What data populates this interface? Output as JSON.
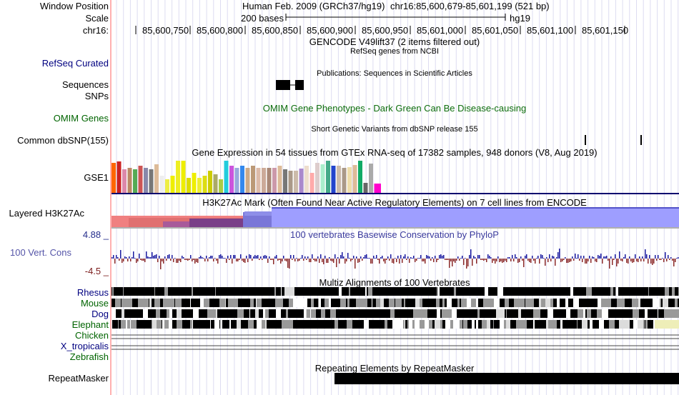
{
  "header": {
    "window_position_label": "Window Position",
    "scale_label": "Scale",
    "chrom_label": "chr16:",
    "assembly": "Human Feb. 2009 (GRCh37/hg19)",
    "region": "chr16:85,600,679-85,601,199 (521 bp)",
    "scale_text": "200 bases",
    "scale_db": "hg19",
    "ruler_ticks": [
      "85,600,750",
      "85,600,800",
      "85,600,850",
      "85,600,900",
      "85,600,950",
      "85,601,000",
      "85,601,050",
      "85,601,100",
      "85,601,150"
    ]
  },
  "tracks": {
    "gencode_title": "GENCODE V49lift37 (2 items filtered out)",
    "refseq_title": "RefSeq genes from NCBI",
    "refseq_label": "RefSeq Curated",
    "pubs_title": "Publications: Sequences in Scientific Articles",
    "sequences_label": "Sequences",
    "snps_label": "SNPs",
    "omim_title": "OMIM Gene Phenotypes - Dark Green Can Be Disease-causing",
    "omim_label": "OMIM Genes",
    "dbsnp_title": "Short Genetic Variants from dbSNP release 155",
    "dbsnp_label": "Common dbSNP(155)",
    "gtex_title": "Gene Expression in 54 tissues from GTEx RNA-seq of 17382 samples, 948 donors (V8, Aug 2019)",
    "gtex_label": "GSE1",
    "h3k27ac_title": "H3K27Ac Mark (Often Found Near Active Regulatory Elements) on 7 cell lines from ENCODE",
    "h3k27ac_label": "Layered H3K27Ac",
    "cons_title": "100 vertebrates Basewise Conservation by PhyloP",
    "cons_label": "100 Vert. Cons",
    "cons_max": "4.88 _",
    "cons_min": "-4.5 _",
    "multiz_title": "Multiz Alignments of 100 Vertebrates",
    "species": [
      "Rhesus",
      "Mouse",
      "Dog",
      "Elephant",
      "Chicken",
      "X_tropicalis",
      "Zebrafish"
    ],
    "repeat_title": "Repeating Elements by RepeatMasker",
    "repeat_label": "RepeatMasker"
  },
  "colors": {
    "navy_label": "#000080",
    "green_label": "#006400",
    "omim_title": "#0d6d0d",
    "cons_title": "#3c3c9e",
    "cons_max": "#262e8c",
    "cons_min": "#7a1a1a",
    "cons_label": "#5555a8",
    "divider": "#0e006e",
    "grid": "#dddcf1",
    "side_bar": "#ffb0b0"
  },
  "gtex_bar_colors": [
    "#ff6600",
    "#cc2222",
    "#dd88aa",
    "#bb8866",
    "#55aa55",
    "#cc5555",
    "#8888aa",
    "#777777",
    "#ddbb99",
    "#eeeeee",
    "#eeee44",
    "#eeee00",
    "#eeee22",
    "#eeee00",
    "#dddd00",
    "#eeee00",
    "#eeee33",
    "#dddd11",
    "#cccc00",
    "#aaaa66",
    "#aacc44",
    "#22ccdd",
    "#cc55dd",
    "#99aadd",
    "#3388ee",
    "#ccaa88",
    "#bb9977",
    "#ddbbaa",
    "#ccaa99",
    "#aa8877",
    "#cc99aa",
    "#ddbb99",
    "#777777",
    "#aa9988",
    "#ccbbaa",
    "#aa88cc",
    "#eeddcc",
    "#ffaaaa",
    "#ddcccc",
    "#aaeecc",
    "#44aa88",
    "#2244cc",
    "#ccbbaa",
    "#aa9988",
    "#eeddaa",
    "#ddbb99",
    "#11aa66",
    "#666666",
    "#aaaaaa",
    "#ff00cc",
    "#55dd55"
  ],
  "gtex_bar_values": [
    0.9,
    0.93,
    0.7,
    0.75,
    0.7,
    0.8,
    0.75,
    0.7,
    0.85,
    0.5,
    0.4,
    0.5,
    0.95,
    0.95,
    0.45,
    0.6,
    0.45,
    0.5,
    0.65,
    0.55,
    0.4,
    0.95,
    0.8,
    0.75,
    0.8,
    0.75,
    0.8,
    0.75,
    0.75,
    0.75,
    0.75,
    0.8,
    0.7,
    0.65,
    0.65,
    0.72,
    0.8,
    0.6,
    0.9,
    0.85,
    0.95,
    0.8,
    0.8,
    0.75,
    0.77,
    0.82,
    0.95,
    0.3,
    0.88,
    0.28,
    0.0
  ]
}
